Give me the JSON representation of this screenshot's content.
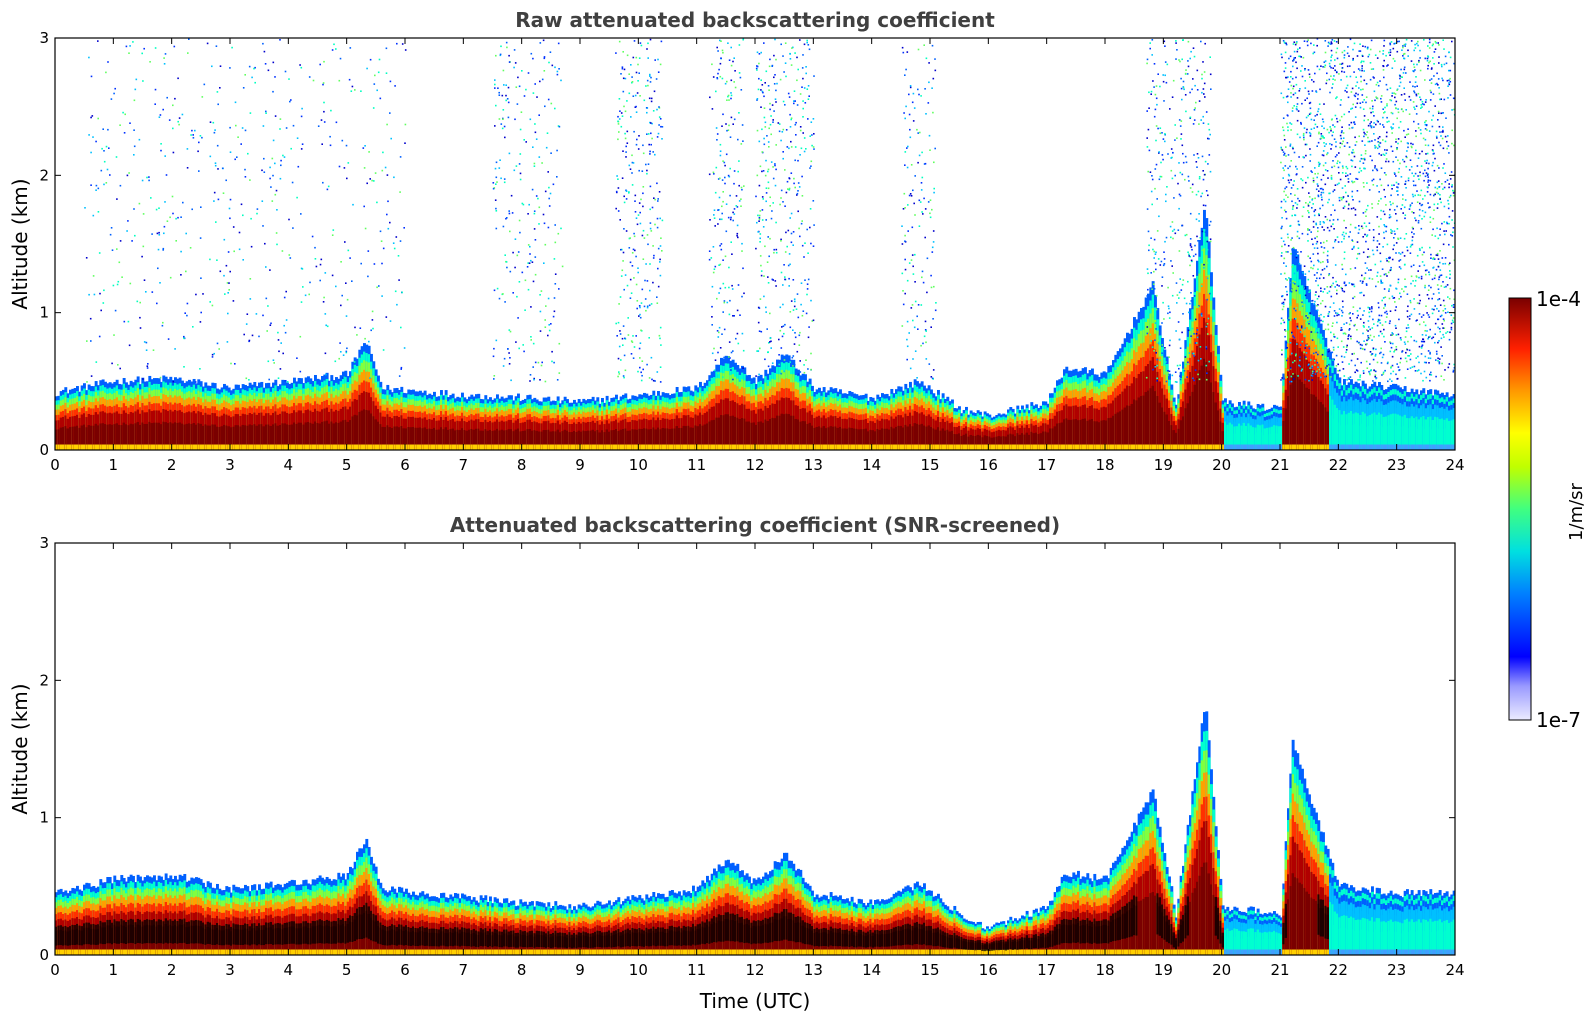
{
  "chart_data": [
    {
      "type": "heatmap",
      "title": "Raw attenuated backscattering coefficient",
      "ylabel": "Altitude (km)",
      "xlabel": "",
      "xlim": [
        0,
        24
      ],
      "ylim": [
        0,
        3
      ],
      "x_ticks": [
        "0",
        "1",
        "2",
        "3",
        "4",
        "5",
        "6",
        "7",
        "8",
        "9",
        "10",
        "11",
        "12",
        "13",
        "14",
        "15",
        "16",
        "17",
        "18",
        "19",
        "20",
        "21",
        "22",
        "23",
        "24"
      ],
      "y_ticks": [
        "0",
        "1",
        "2",
        "3"
      ],
      "screened": false,
      "boundary_layer_top_km": [
        [
          0,
          0.42
        ],
        [
          1,
          0.5
        ],
        [
          2,
          0.52
        ],
        [
          3,
          0.45
        ],
        [
          4,
          0.5
        ],
        [
          5,
          0.55
        ],
        [
          5.3,
          0.8
        ],
        [
          5.6,
          0.45
        ],
        [
          7,
          0.4
        ],
        [
          8,
          0.38
        ],
        [
          9,
          0.35
        ],
        [
          10,
          0.4
        ],
        [
          11,
          0.45
        ],
        [
          11.5,
          0.7
        ],
        [
          12,
          0.5
        ],
        [
          12.5,
          0.7
        ],
        [
          13,
          0.45
        ],
        [
          14,
          0.38
        ],
        [
          14.8,
          0.5
        ],
        [
          15.5,
          0.3
        ],
        [
          16,
          0.25
        ],
        [
          17,
          0.35
        ],
        [
          17.3,
          0.6
        ],
        [
          18,
          0.55
        ],
        [
          18.8,
          1.2
        ],
        [
          19.2,
          0.3
        ],
        [
          19.7,
          1.8
        ],
        [
          20,
          0.35
        ],
        [
          21,
          0.3
        ],
        [
          21.2,
          1.5
        ],
        [
          22,
          0.5
        ],
        [
          23,
          0.45
        ],
        [
          24,
          0.4
        ]
      ],
      "notes_visible": []
    },
    {
      "type": "heatmap",
      "title": "Attenuated backscattering coefficient (SNR-screened)",
      "ylabel": "Altitude (km)",
      "xlabel": "Time (UTC)",
      "xlim": [
        0,
        24
      ],
      "ylim": [
        0,
        3
      ],
      "x_ticks": [
        "0",
        "1",
        "2",
        "3",
        "4",
        "5",
        "6",
        "7",
        "8",
        "9",
        "10",
        "11",
        "12",
        "13",
        "14",
        "15",
        "16",
        "17",
        "18",
        "19",
        "20",
        "21",
        "22",
        "23",
        "24"
      ],
      "y_ticks": [
        "0",
        "1",
        "2",
        "3"
      ],
      "screened": true,
      "boundary_layer_top_km": [
        [
          0,
          0.45
        ],
        [
          1,
          0.55
        ],
        [
          2,
          0.58
        ],
        [
          3,
          0.48
        ],
        [
          4,
          0.52
        ],
        [
          5,
          0.58
        ],
        [
          5.3,
          0.85
        ],
        [
          5.6,
          0.48
        ],
        [
          7,
          0.42
        ],
        [
          8,
          0.38
        ],
        [
          9,
          0.35
        ],
        [
          10,
          0.42
        ],
        [
          11,
          0.48
        ],
        [
          11.5,
          0.7
        ],
        [
          12,
          0.52
        ],
        [
          12.5,
          0.75
        ],
        [
          13,
          0.45
        ],
        [
          14,
          0.38
        ],
        [
          14.8,
          0.52
        ],
        [
          15.5,
          0.3
        ],
        [
          16,
          0.2
        ],
        [
          17,
          0.35
        ],
        [
          17.3,
          0.6
        ],
        [
          18,
          0.55
        ],
        [
          18.8,
          1.2
        ],
        [
          19.2,
          0.3
        ],
        [
          19.7,
          1.85
        ],
        [
          20,
          0.35
        ],
        [
          21,
          0.3
        ],
        [
          21.2,
          1.55
        ],
        [
          22,
          0.5
        ],
        [
          23,
          0.45
        ],
        [
          24,
          0.45
        ]
      ]
    }
  ],
  "colorbar": {
    "max_label": "1e-4",
    "min_label": "1e-7",
    "unit": "1/m/sr",
    "colormap": "jet",
    "colors": [
      "#e8e8ff",
      "#0000ff",
      "#00bfff",
      "#00ffcc",
      "#7fff00",
      "#ffff00",
      "#ff9900",
      "#ff2200",
      "#8b0000"
    ]
  }
}
